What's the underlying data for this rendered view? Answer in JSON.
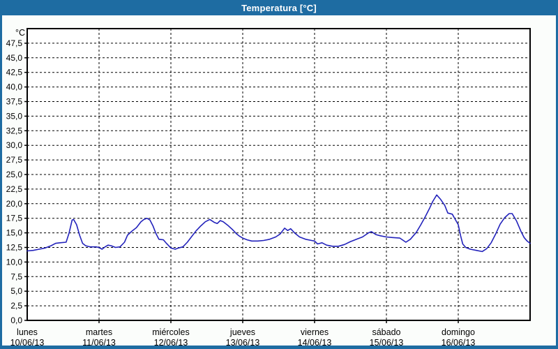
{
  "window": {
    "title": "Temperatura [°C]"
  },
  "colors": {
    "frame": "#1E6CA2",
    "panel_bg": "#FBFDFB",
    "plot_bg": "#FFFFFF",
    "plot_border": "#000000",
    "grid": "#000000",
    "text": "#000000",
    "series_line": "#2222BB",
    "title_text": "#FFFFFF"
  },
  "chart_data": {
    "type": "line",
    "title": "Temperatura [°C]",
    "legend_position": "none",
    "grid": "dashed",
    "y_axis": {
      "unit_label": "°C",
      "min": 0,
      "top": 50,
      "tick_step": 2.5,
      "max_labeled_tick": 47.5,
      "tick_labels": [
        "0,0",
        "2,5",
        "5,0",
        "7,5",
        "10,0",
        "12,5",
        "15,0",
        "17,5",
        "20,0",
        "22,5",
        "25,0",
        "27,5",
        "30,0",
        "32,5",
        "35,0",
        "37,5",
        "40,0",
        "42,5",
        "45,0",
        "47,5"
      ]
    },
    "x_axis": {
      "unit": "hours",
      "min": 0,
      "max": 168,
      "day_span_hours": 24,
      "labels": [
        {
          "day": "lunes",
          "date": "10/06/13"
        },
        {
          "day": "martes",
          "date": "11/06/13"
        },
        {
          "day": "miércoles",
          "date": "12/06/13"
        },
        {
          "day": "jueves",
          "date": "13/06/13"
        },
        {
          "day": "viernes",
          "date": "14/06/13"
        },
        {
          "day": "sábado",
          "date": "15/06/13"
        },
        {
          "day": "domingo",
          "date": "16/06/13"
        }
      ]
    },
    "series": [
      {
        "name": "Temperatura",
        "color": "#2222BB",
        "points": [
          [
            0,
            11.9
          ],
          [
            2,
            12.0
          ],
          [
            4,
            12.2
          ],
          [
            6,
            12.4
          ],
          [
            8,
            12.8
          ],
          [
            9.5,
            13.2
          ],
          [
            11,
            13.3
          ],
          [
            13,
            13.4
          ],
          [
            14,
            15.0
          ],
          [
            15,
            17.2
          ],
          [
            15.5,
            17.3
          ],
          [
            16.5,
            16.4
          ],
          [
            17.5,
            14.6
          ],
          [
            18.5,
            13.2
          ],
          [
            19.5,
            12.8
          ],
          [
            21,
            12.6
          ],
          [
            23,
            12.6
          ],
          [
            24,
            12.5
          ],
          [
            25,
            12.2
          ],
          [
            26,
            12.6
          ],
          [
            27,
            12.9
          ],
          [
            28,
            12.8
          ],
          [
            29.5,
            12.5
          ],
          [
            31,
            12.6
          ],
          [
            32.5,
            13.4
          ],
          [
            33.5,
            14.6
          ],
          [
            35,
            15.3
          ],
          [
            36.5,
            15.9
          ],
          [
            38,
            16.9
          ],
          [
            39,
            17.3
          ],
          [
            40,
            17.5
          ],
          [
            41,
            17.2
          ],
          [
            42,
            16.2
          ],
          [
            43,
            14.9
          ],
          [
            44,
            13.9
          ],
          [
            45.5,
            13.8
          ],
          [
            46.5,
            13.2
          ],
          [
            48,
            12.4
          ],
          [
            49.5,
            12.2
          ],
          [
            50.5,
            12.4
          ],
          [
            52,
            12.6
          ],
          [
            53.5,
            13.4
          ],
          [
            55,
            14.4
          ],
          [
            56.5,
            15.4
          ],
          [
            58,
            16.2
          ],
          [
            59.5,
            16.9
          ],
          [
            61,
            17.3
          ],
          [
            62.5,
            16.8
          ],
          [
            63.5,
            16.6
          ],
          [
            64.5,
            17.1
          ],
          [
            65.5,
            16.9
          ],
          [
            67,
            16.3
          ],
          [
            68.5,
            15.6
          ],
          [
            70,
            14.8
          ],
          [
            71,
            14.4
          ],
          [
            72,
            14.1
          ],
          [
            73.5,
            13.8
          ],
          [
            75,
            13.6
          ],
          [
            77,
            13.6
          ],
          [
            79,
            13.7
          ],
          [
            81,
            13.9
          ],
          [
            83,
            14.3
          ],
          [
            84.5,
            14.8
          ],
          [
            86,
            15.8
          ],
          [
            87,
            15.4
          ],
          [
            88,
            15.7
          ],
          [
            89.5,
            14.9
          ],
          [
            91,
            14.3
          ],
          [
            93,
            13.9
          ],
          [
            95,
            13.7
          ],
          [
            96,
            13.6
          ],
          [
            97,
            13.1
          ],
          [
            98.5,
            13.3
          ],
          [
            100,
            12.9
          ],
          [
            102,
            12.7
          ],
          [
            104,
            12.7
          ],
          [
            106,
            13.0
          ],
          [
            108,
            13.5
          ],
          [
            110,
            13.9
          ],
          [
            112,
            14.3
          ],
          [
            114,
            15.0
          ],
          [
            115,
            15.2
          ],
          [
            116.5,
            14.7
          ],
          [
            118,
            14.5
          ],
          [
            120,
            14.3
          ],
          [
            122,
            14.2
          ],
          [
            124.5,
            14.1
          ],
          [
            126.5,
            13.4
          ],
          [
            128,
            13.9
          ],
          [
            130,
            15.1
          ],
          [
            131.5,
            16.4
          ],
          [
            133,
            17.8
          ],
          [
            134.5,
            19.3
          ],
          [
            135.5,
            20.4
          ],
          [
            136.8,
            21.5
          ],
          [
            138,
            20.8
          ],
          [
            139.5,
            19.7
          ],
          [
            140.5,
            18.4
          ],
          [
            142,
            18.2
          ],
          [
            143,
            17.3
          ],
          [
            144,
            16.4
          ],
          [
            144.8,
            14.5
          ],
          [
            145.5,
            13.1
          ],
          [
            146.5,
            12.5
          ],
          [
            148,
            12.2
          ],
          [
            150,
            12.0
          ],
          [
            152,
            11.8
          ],
          [
            153.5,
            12.3
          ],
          [
            155,
            13.3
          ],
          [
            156.5,
            14.8
          ],
          [
            158,
            16.5
          ],
          [
            159.5,
            17.6
          ],
          [
            161,
            18.3
          ],
          [
            162,
            18.3
          ],
          [
            163.5,
            17.0
          ],
          [
            165,
            15.2
          ],
          [
            166,
            14.2
          ],
          [
            167,
            13.6
          ],
          [
            168,
            13.2
          ]
        ]
      }
    ]
  }
}
